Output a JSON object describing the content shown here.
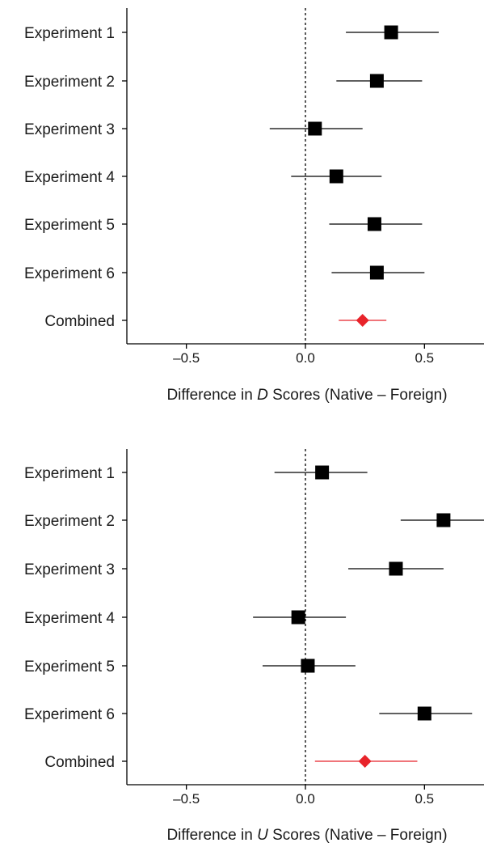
{
  "chart_data": [
    {
      "type": "forest",
      "title": "",
      "xlabel_parts": [
        "Difference in ",
        "D",
        " Scores (Native – Foreign)"
      ],
      "categories": [
        "Experiment 1",
        "Experiment 2",
        "Experiment 3",
        "Experiment 4",
        "Experiment 5",
        "Experiment 6",
        "Combined"
      ],
      "estimates": [
        0.36,
        0.3,
        0.04,
        0.13,
        0.29,
        0.3,
        0.24
      ],
      "ci_low": [
        0.17,
        0.13,
        -0.15,
        -0.06,
        0.1,
        0.11,
        0.14
      ],
      "ci_high": [
        0.56,
        0.49,
        0.24,
        0.32,
        0.49,
        0.5,
        0.34
      ],
      "combined_color": "#e8232a",
      "point_color": "#000000",
      "xlim": [
        -0.75,
        0.75
      ],
      "xticks": [
        -0.5,
        0.0,
        0.5
      ],
      "xtick_labels": [
        "–0.5",
        "0.0",
        "0.5"
      ],
      "reference_line": 0.0
    },
    {
      "type": "forest",
      "title": "",
      "xlabel_parts": [
        "Difference in ",
        "U",
        " Scores (Native – Foreign)"
      ],
      "categories": [
        "Experiment 1",
        "Experiment 2",
        "Experiment 3",
        "Experiment 4",
        "Experiment 5",
        "Experiment 6",
        "Combined"
      ],
      "estimates": [
        0.07,
        0.58,
        0.38,
        -0.03,
        0.01,
        0.5,
        0.25
      ],
      "ci_low": [
        -0.13,
        0.4,
        0.18,
        -0.22,
        -0.18,
        0.31,
        0.04
      ],
      "ci_high": [
        0.26,
        0.75,
        0.58,
        0.17,
        0.21,
        0.7,
        0.47
      ],
      "combined_color": "#e8232a",
      "point_color": "#000000",
      "xlim": [
        -0.75,
        0.75
      ],
      "xticks": [
        -0.5,
        0.0,
        0.5
      ],
      "xtick_labels": [
        "–0.5",
        "0.0",
        "0.5"
      ],
      "reference_line": 0.0
    }
  ]
}
